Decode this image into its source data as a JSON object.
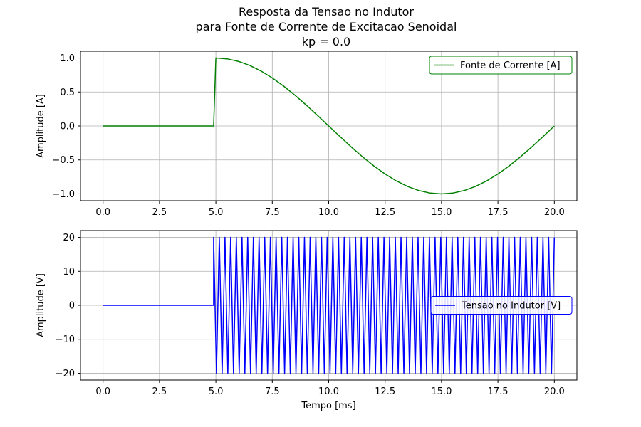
{
  "title_lines": [
    "Resposta da Tensao no Indutor",
    "para Fonte de Corrente de Excitacao Senoidal",
    "kp = 0.0"
  ],
  "chart_data": [
    {
      "type": "line",
      "xlabel": "",
      "ylabel": "Amplitude [A]",
      "xlim": [
        -1.0,
        21.0
      ],
      "ylim": [
        -1.1,
        1.1
      ],
      "xticks": [
        0.0,
        2.5,
        5.0,
        7.5,
        10.0,
        12.5,
        15.0,
        17.5,
        20.0
      ],
      "xtick_labels": [
        "0.0",
        "2.5",
        "5.0",
        "7.5",
        "10.0",
        "12.5",
        "15.0",
        "17.5",
        "20.0"
      ],
      "yticks": [
        1.0,
        0.5,
        0.0,
        -0.5,
        -1.0
      ],
      "ytick_labels": [
        "1.0",
        "0.5",
        "0.0",
        "−0.5",
        "−1.0"
      ],
      "grid": true,
      "legend_position": "upper right",
      "series": [
        {
          "name": "Fonte de Corrente [A]",
          "color": "#008000",
          "x": [
            0,
            4.9,
            5.0,
            5.5,
            6.0,
            6.5,
            7.0,
            7.5,
            8.0,
            8.5,
            9.0,
            9.5,
            10.0,
            10.5,
            11.0,
            11.5,
            12.0,
            12.5,
            13.0,
            13.5,
            14.0,
            14.5,
            15.0,
            15.5,
            16.0,
            16.5,
            17.0,
            17.5,
            18.0,
            18.5,
            19.0,
            19.5,
            20.0
          ],
          "y": [
            0,
            0,
            1.0,
            0.988,
            0.951,
            0.891,
            0.809,
            0.707,
            0.588,
            0.454,
            0.309,
            0.156,
            0.0,
            -0.156,
            -0.309,
            -0.454,
            -0.588,
            -0.707,
            -0.809,
            -0.891,
            -0.951,
            -0.988,
            -1.0,
            -0.988,
            -0.951,
            -0.891,
            -0.809,
            -0.707,
            -0.588,
            -0.454,
            -0.309,
            -0.156,
            0.0
          ]
        }
      ]
    },
    {
      "type": "line",
      "xlabel": "Tempo [ms]",
      "ylabel": "Amplitude [V]",
      "xlim": [
        -1.0,
        21.0
      ],
      "ylim": [
        -22.0,
        22.0
      ],
      "xticks": [
        0.0,
        2.5,
        5.0,
        7.5,
        10.0,
        12.5,
        15.0,
        17.5,
        20.0
      ],
      "xtick_labels": [
        "0.0",
        "2.5",
        "5.0",
        "7.5",
        "10.0",
        "12.5",
        "15.0",
        "17.5",
        "20.0"
      ],
      "yticks": [
        20,
        10,
        0,
        -10,
        -20
      ],
      "ytick_labels": [
        "20",
        "10",
        "0",
        "−10",
        "−20"
      ],
      "grid": true,
      "legend_position": "center right",
      "series": [
        {
          "name": "Tensao no Indutor [V]",
          "color": "#0000ff",
          "x_start": 0,
          "onset": 4.9,
          "x_end": 20.0,
          "baseline": 0,
          "amplitude": 20,
          "cycles": 60
        }
      ]
    }
  ]
}
